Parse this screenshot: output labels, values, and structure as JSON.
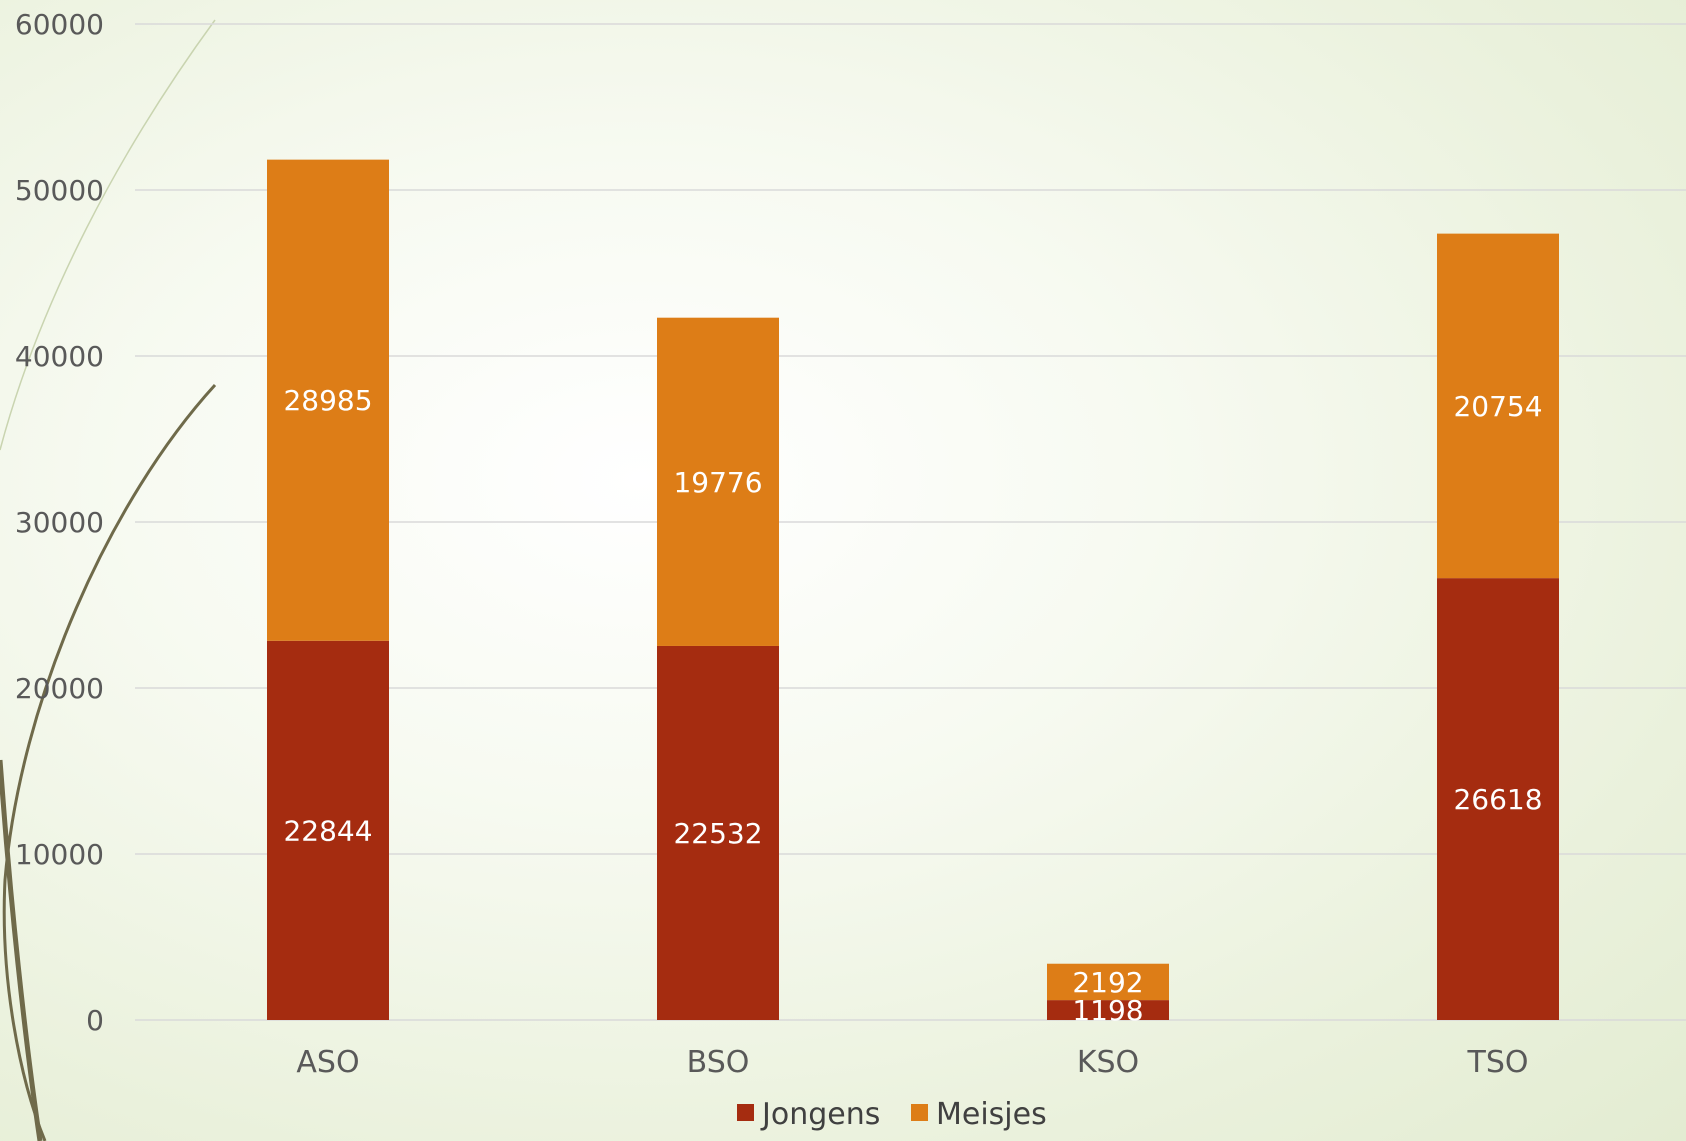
{
  "chart_data": {
    "type": "bar",
    "stacked": true,
    "categories": [
      "ASO",
      "BSO",
      "KSO",
      "TSO"
    ],
    "series": [
      {
        "name": "Jongens",
        "color": "#a52c10",
        "values": [
          22844,
          22532,
          1198,
          26618
        ]
      },
      {
        "name": "Meisjes",
        "color": "#dd7d17",
        "values": [
          28985,
          19776,
          2192,
          20754
        ]
      }
    ],
    "ylim": [
      0,
      60000
    ],
    "yticks": [
      0,
      10000,
      20000,
      30000,
      40000,
      50000,
      60000
    ],
    "grid": true,
    "legend": "bottom",
    "data_labels": true
  }
}
